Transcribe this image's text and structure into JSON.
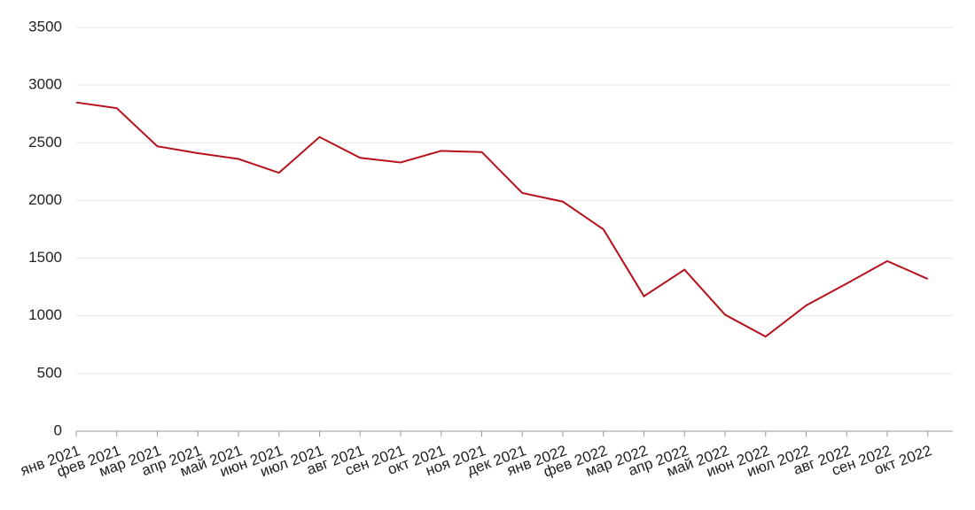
{
  "chart_data": {
    "type": "line",
    "x": [
      "янв 2021",
      "фев 2021",
      "мар 2021",
      "апр 2021",
      "май 2021",
      "июн 2021",
      "июл 2021",
      "авг 2021",
      "сен 2021",
      "окт 2021",
      "ноя 2021",
      "дек 2021",
      "янв 2022",
      "фев 2022",
      "мар 2022",
      "апр 2022",
      "май 2022",
      "июн 2022",
      "июл 2022",
      "авг 2022",
      "сен 2022",
      "окт 2022"
    ],
    "series": [
      {
        "name": null,
        "color": "#b5121b",
        "values": [
          2850,
          2800,
          2470,
          2410,
          2360,
          2240,
          2550,
          2370,
          2330,
          2430,
          2420,
          2065,
          1990,
          1750,
          1170,
          1400,
          1010,
          820,
          1090,
          1280,
          1475,
          1320
        ]
      }
    ],
    "ylim": [
      0,
      3500
    ],
    "yticks": [
      0,
      500,
      1000,
      1500,
      2000,
      2500,
      3000,
      3500
    ],
    "grid": true
  }
}
